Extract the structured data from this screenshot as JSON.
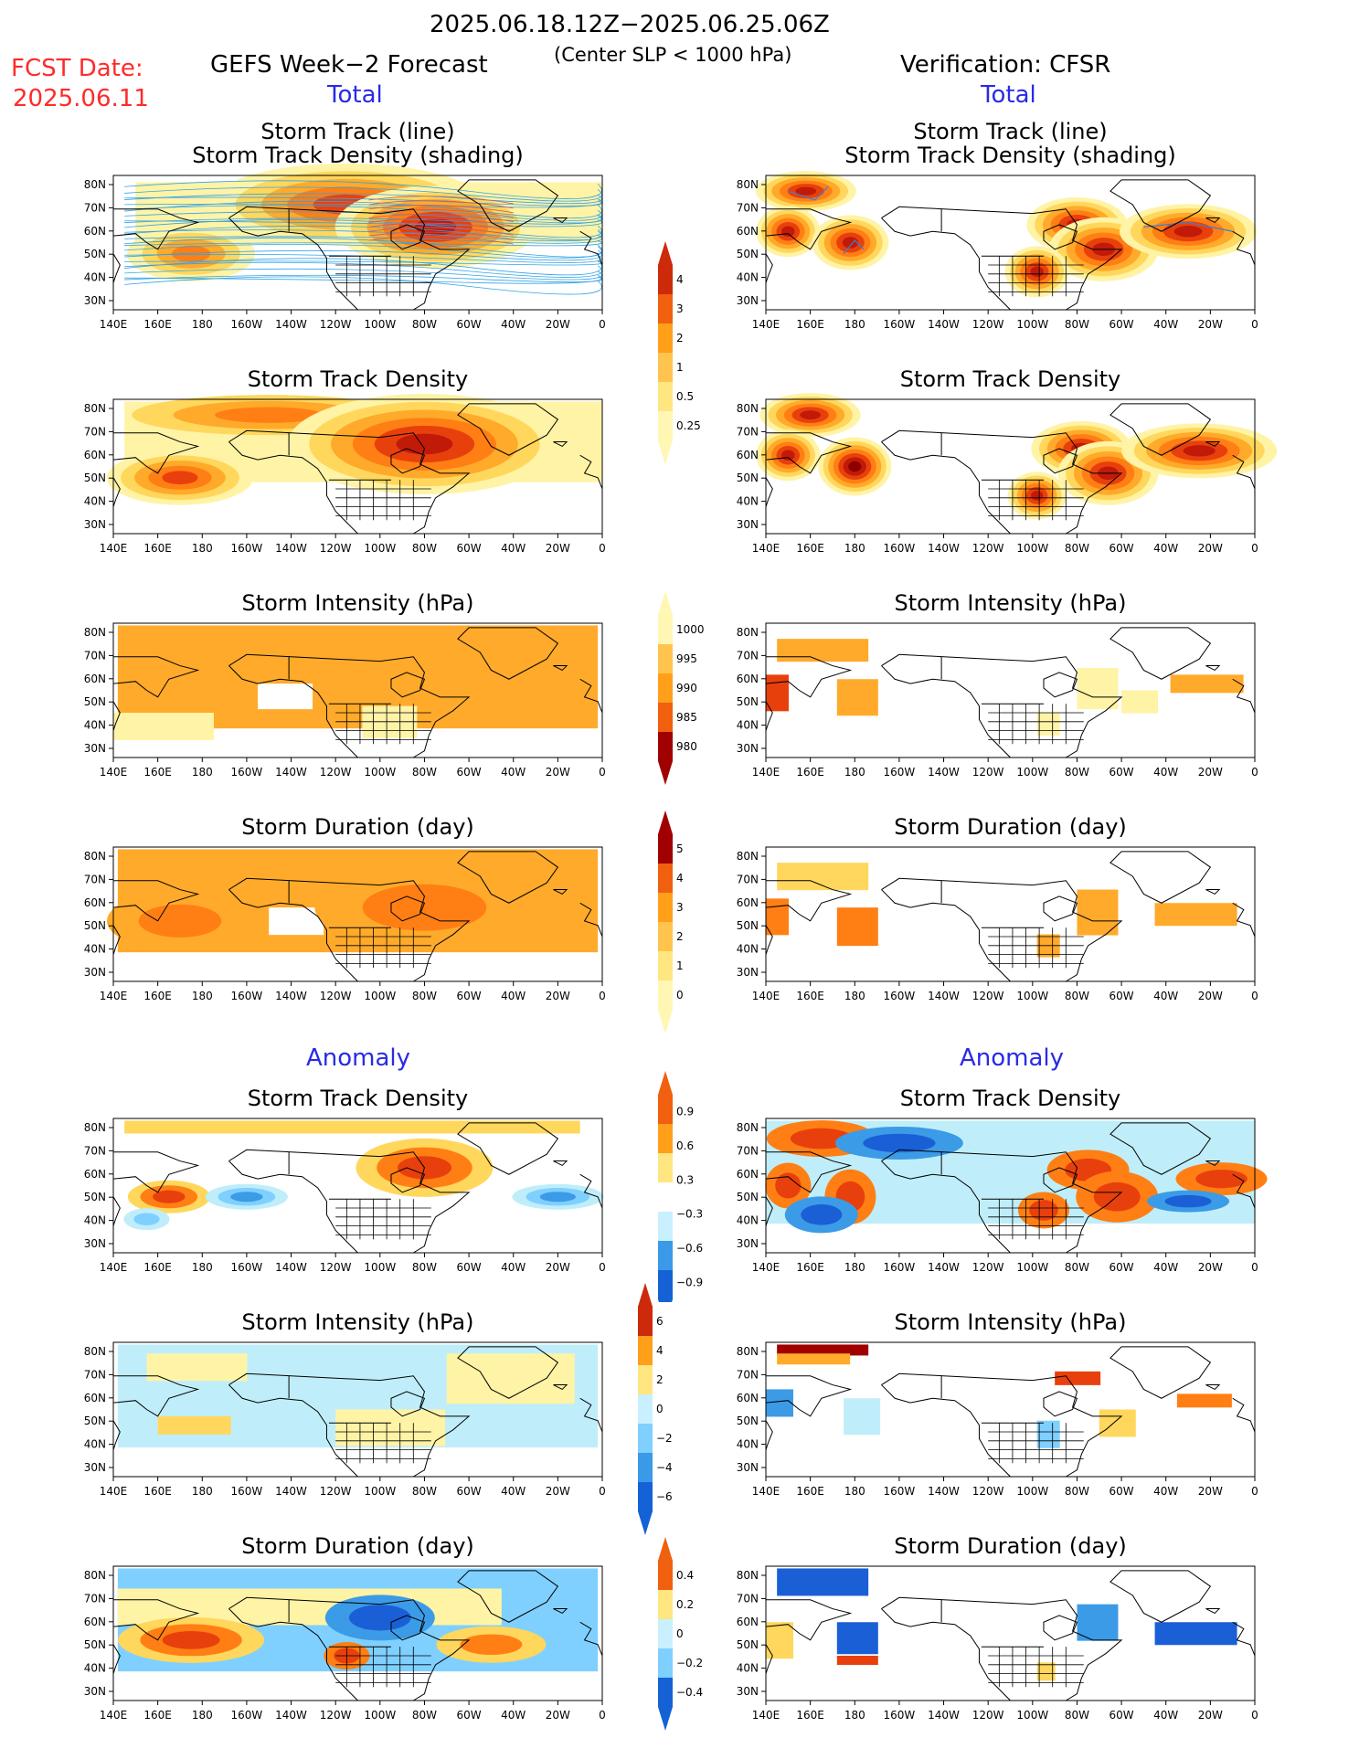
{
  "header": {
    "date_range": "2025.06.18.12Z−2025.06.25.06Z",
    "fcst_label": "FCST Date:",
    "fcst_date": "2025.06.11",
    "forecast_title": "GEFS Week−2 Forecast",
    "criterion": "(Center SLP < 1000 hPa)",
    "verification_title": "Verification: CFSR",
    "total_label": "Total",
    "anomaly_label": "Anomaly"
  },
  "panel_titles": {
    "track_line": "Storm Track (line)",
    "track_density_shading": "Storm Track Density (shading)",
    "track_density": "Storm Track Density",
    "intensity": "Storm Intensity (hPa)",
    "duration": "Storm Duration (day)"
  },
  "axes": {
    "lon_ticks": [
      "140E",
      "160E",
      "180",
      "160W",
      "140W",
      "120W",
      "100W",
      "80W",
      "60W",
      "40W",
      "20W",
      "0"
    ],
    "lat_ticks": [
      "80N",
      "70N",
      "60N",
      "50N",
      "40N",
      "30N"
    ]
  },
  "colorbars": {
    "total_density": [
      "4",
      "3",
      "2",
      "1",
      "0.5",
      "0.25"
    ],
    "total_intensity": [
      "1000",
      "995",
      "990",
      "985",
      "980"
    ],
    "total_duration": [
      "5",
      "4",
      "3",
      "2",
      "1",
      "0"
    ],
    "anom_density": [
      "0.9",
      "0.6",
      "0.3",
      "−0.3",
      "−0.6",
      "−0.9"
    ],
    "anom_intensity": [
      "6",
      "4",
      "2",
      "0",
      "−2",
      "−4",
      "−6"
    ],
    "anom_duration": [
      "0.4",
      "0.2",
      "0",
      "−0.2",
      "−0.4"
    ]
  },
  "palettes": {
    "warm": [
      "#fff3a6",
      "#ffd75c",
      "#ffaa2a",
      "#ff7f14",
      "#e8400c",
      "#c21a08",
      "#8c0000"
    ],
    "cool": [
      "#bfeefa",
      "#7fd0ff",
      "#3c9be6",
      "#1a5fd6"
    ],
    "colorbar_warm": [
      "#fff7b3",
      "#ffe680",
      "#ffc44d",
      "#ff9f1a",
      "#f0600f",
      "#cc2a0a",
      "#a00000"
    ],
    "colorbar_cool": [
      "#c8f0ff",
      "#7fcfff",
      "#3a9ae8",
      "#1462d6"
    ]
  }
}
